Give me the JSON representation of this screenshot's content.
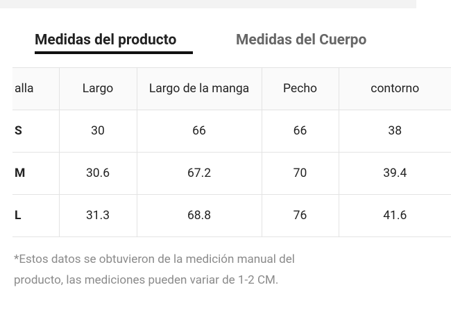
{
  "tabs": [
    {
      "label": "Medidas del producto",
      "active": true
    },
    {
      "label": "Medidas del Cuerpo",
      "active": false
    }
  ],
  "table": {
    "header": [
      "alla",
      "Largo",
      "Largo de la manga",
      "Pecho",
      "contorno"
    ],
    "rows": [
      [
        "S",
        "30",
        "66",
        "66",
        "38"
      ],
      [
        "M",
        "30.6",
        "67.2",
        "70",
        "39.4"
      ],
      [
        "L",
        "31.3",
        "68.8",
        "76",
        "41.6"
      ]
    ]
  },
  "note": [
    "*Estos datos se obtuvieron de la medición manual del",
    "producto, las mediciones pueden variar de 1-2 CM."
  ]
}
